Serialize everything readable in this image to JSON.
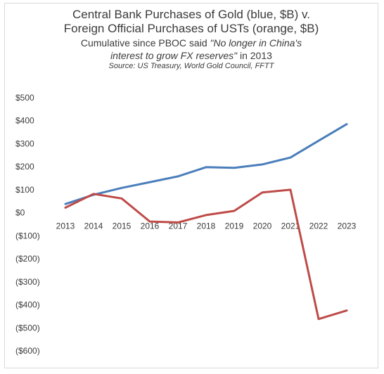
{
  "chart_data": {
    "type": "line",
    "title_line1": "Central Bank Purchases of Gold (blue, $B) v.",
    "title_line2": "Foreign Official Purchases of USTs (orange, $B)",
    "subtitle_a": "Cumulative since PBOC said ",
    "subtitle_quote_1": "\"No longer in China's",
    "subtitle_quote_2": "interest to grow FX reserves\"",
    "subtitle_b": " in 2013",
    "source": "Source: US Treasury, World Gold Council, FFTT",
    "x": [
      2013,
      2014,
      2015,
      2016,
      2017,
      2018,
      2019,
      2020,
      2021,
      2022,
      2023
    ],
    "x_tick_labels": [
      "2013",
      "2014",
      "2015",
      "2016",
      "2017",
      "2018",
      "2019",
      "2020",
      "2021",
      "2022",
      "2023"
    ],
    "ylim": [
      -600,
      500
    ],
    "y_ticks": [
      500,
      400,
      300,
      200,
      100,
      0,
      -100,
      -200,
      -300,
      -400,
      -500,
      -600
    ],
    "y_tick_labels": [
      "$500",
      "$400",
      "$300",
      "$200",
      "$100",
      "$0",
      "($100)",
      "($200)",
      "($300)",
      "($400)",
      "($500)",
      "($600)"
    ],
    "grid": false,
    "legend": "none",
    "series": [
      {
        "color": "#4a7ebb",
        "values": [
          38,
          78,
          108,
          133,
          158,
          198,
          195,
          210,
          240,
          313,
          385
        ]
      },
      {
        "color": "#be4b48",
        "values": [
          22,
          82,
          62,
          -38,
          -42,
          -10,
          8,
          88,
          100,
          -462,
          -425
        ]
      }
    ]
  }
}
